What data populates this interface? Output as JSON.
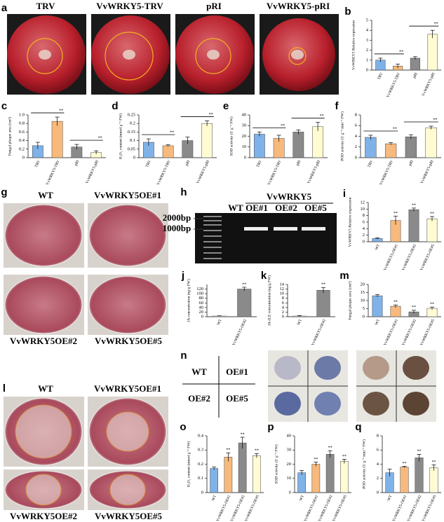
{
  "figure_panels": [
    {
      "panel": "a",
      "labels": [
        "TRV",
        "VvWRKY5-TRV",
        "pRI",
        "VvWRKY5-pRI"
      ]
    },
    {
      "panel": "g",
      "labels": [
        "WT",
        "VvWRKY5OE#1",
        "VvWRKY5OE#2",
        "VvWRKY5OE#5"
      ]
    },
    {
      "panel": "h",
      "labels": [
        "2000bp",
        "1000bp",
        "WT",
        "VvWRKY5",
        "OE#1",
        "OE#2",
        "OE#5"
      ]
    },
    {
      "panel": "l",
      "labels": [
        "WT",
        "VvWRKY5OE#1",
        "VvWRKY5OE#2",
        "VvWRKY5OE#5"
      ]
    },
    {
      "panel": "n",
      "labels": [
        "WT",
        "OE#1",
        "OE#2",
        "OE#5"
      ]
    }
  ],
  "chart_data": [
    {
      "type": "bar",
      "panel": "b",
      "ylabel": "VvWRKY5 Relative expression",
      "categories": [
        "TRV",
        "VvWRKY5-TRV",
        "pRI",
        "VvWRKY5-pRI"
      ],
      "values": [
        1.0,
        0.4,
        1.2,
        3.6
      ],
      "errors": [
        0.2,
        0.2,
        0.15,
        0.4
      ],
      "colors": [
        "#7fb2e8",
        "#f7b97c",
        "#8a8a8a",
        "#fffbd2"
      ],
      "significance": [
        null,
        "**",
        null,
        "**"
      ],
      "significance_style": "bracket",
      "ylim": [
        0,
        5
      ],
      "yticks": [
        0,
        1,
        2,
        3,
        4,
        5
      ]
    },
    {
      "type": "bar",
      "panel": "c",
      "ylabel": "Fungal plaque area (cm²)",
      "categories": [
        "TRV",
        "VvWRKY5-TRV",
        "pRI",
        "VvWRKY5-pRI"
      ],
      "values": [
        0.28,
        0.85,
        0.25,
        0.12
      ],
      "errors": [
        0.08,
        0.1,
        0.06,
        0.04
      ],
      "colors": [
        "#7fb2e8",
        "#f7b97c",
        "#8a8a8a",
        "#fffbd2"
      ],
      "significance": [
        null,
        "**",
        null,
        "**"
      ],
      "significance_style": "bracket",
      "ylim": [
        0,
        1
      ],
      "yticks": [
        0,
        0.2,
        0.4,
        0.6,
        0.8,
        {
          "value": 1,
          "label": "1.0"
        }
      ]
    },
    {
      "type": "bar",
      "panel": "d",
      "ylabel": "H₂O₂ content (mmol g⁻¹ FW)",
      "categories": [
        "TRV",
        "VvWRKY5-TRV",
        "pRI",
        "VvWRKY5-pRI"
      ],
      "values": [
        0.09,
        0.07,
        0.1,
        0.2
      ],
      "errors": [
        0.02,
        0.005,
        0.02,
        0.015
      ],
      "colors": [
        "#7fb2e8",
        "#f7b97c",
        "#8a8a8a",
        "#fffbd2"
      ],
      "significance": [
        null,
        "**",
        null,
        "**"
      ],
      "significance_style": "bracket",
      "ylim": [
        0,
        0.25
      ],
      "yticks": [
        0,
        0.05,
        0.1,
        0.15,
        0.2,
        0.25
      ]
    },
    {
      "type": "bar",
      "panel": "e",
      "ylabel": "SOD activity (U g⁻¹ FW)",
      "categories": [
        "TRV",
        "VvWRKY5-TRV",
        "pRI",
        "VvWRKY5-pRI"
      ],
      "values": [
        22,
        18,
        24,
        29
      ],
      "errors": [
        2,
        3,
        2,
        4
      ],
      "colors": [
        "#7fb2e8",
        "#f7b97c",
        "#8a8a8a",
        "#fffbd2"
      ],
      "significance": [
        null,
        "**",
        null,
        "**"
      ],
      "significance_style": "bracket",
      "ylim": [
        0,
        40
      ],
      "yticks": [
        0,
        10,
        20,
        30,
        40
      ]
    },
    {
      "type": "bar",
      "panel": "f",
      "ylabel": "POD activity (U g⁻¹ min⁻¹ FW)",
      "categories": [
        "TRV",
        "VvWRKY5-TRV",
        "pRI",
        "VvWRKY5-pRI"
      ],
      "values": [
        3.8,
        2.6,
        3.9,
        5.6
      ],
      "errors": [
        0.4,
        0.2,
        0.4,
        0.3
      ],
      "colors": [
        "#7fb2e8",
        "#f7b97c",
        "#8a8a8a",
        "#fffbd2"
      ],
      "significance": [
        null,
        "**",
        null,
        "**"
      ],
      "significance_style": "bracket",
      "ylim": [
        0,
        8
      ],
      "yticks": [
        0,
        2,
        4,
        6,
        8
      ]
    },
    {
      "type": "bar",
      "panel": "i",
      "ylabel": "VvWRKY5 Relative expression",
      "categories": [
        "WT",
        "VvWRKY5-OE#1",
        "VvWRKY5-OE#2",
        "VvWRKY5-OE#5"
      ],
      "values": [
        1,
        6.5,
        9.8,
        7.0
      ],
      "errors": [
        0.2,
        1.3,
        0.5,
        0.7
      ],
      "colors": [
        "#7fb2e8",
        "#f7b97c",
        "#8a8a8a",
        "#fffbd2"
      ],
      "significance": [
        null,
        "**",
        "**",
        "**"
      ],
      "significance_style": "bar",
      "ylim": [
        0,
        12
      ],
      "yticks": [
        0,
        2,
        4,
        6,
        8,
        10,
        12
      ]
    },
    {
      "type": "bar",
      "panel": "j",
      "ylabel": "JA concentration (ng/g FW)",
      "categories": [
        "WT",
        "VvWRKY5-OE#2"
      ],
      "values": [
        3,
        120
      ],
      "errors": [
        1,
        8
      ],
      "colors": [
        "#ffffff",
        "#8a8a8a"
      ],
      "significance": [
        null,
        "**"
      ],
      "significance_style": "bar",
      "ylim": [
        0,
        140
      ],
      "yticks": [
        0,
        20,
        40,
        60,
        80,
        100,
        120
      ]
    },
    {
      "type": "bar",
      "panel": "k",
      "ylabel": "JA-ILE concentration (ng/g FW)",
      "categories": [
        "WT",
        "VvWRKY5-OE#2"
      ],
      "values": [
        0.3,
        11.5
      ],
      "errors": [
        0.2,
        1.2
      ],
      "colors": [
        "#ffffff",
        "#8a8a8a"
      ],
      "significance": [
        null,
        "**"
      ],
      "significance_style": "bar",
      "ylim": [
        0,
        14
      ],
      "yticks": [
        0,
        2,
        4,
        6,
        8,
        10,
        12,
        14
      ]
    },
    {
      "type": "bar",
      "panel": "m",
      "ylabel": "Fungal plaque area (cm²)",
      "categories": [
        "WT",
        "VvWRKY5-OE#1",
        "VvWRKY5-OE#2",
        "VvWRKY5-OE#5"
      ],
      "values": [
        13,
        6.5,
        3,
        5.2
      ],
      "errors": [
        0.8,
        0.8,
        1,
        0.8
      ],
      "colors": [
        "#7fb2e8",
        "#f7b97c",
        "#8a8a8a",
        "#fffbd2"
      ],
      "significance": [
        null,
        "**",
        "**",
        "**"
      ],
      "significance_style": "bar",
      "ylim": [
        0,
        20
      ],
      "yticks": [
        0,
        5,
        10,
        15,
        20
      ]
    },
    {
      "type": "bar",
      "panel": "o",
      "ylabel": "H₂O₂ content (mmol g⁻¹ FW)",
      "categories": [
        "WT",
        "VvWRKY5-OE#1",
        "VvWRKY5-OE#2",
        "VvWRKY5-OE#5"
      ],
      "values": [
        0.17,
        0.25,
        0.35,
        0.26
      ],
      "errors": [
        0.01,
        0.03,
        0.04,
        0.015
      ],
      "colors": [
        "#7fb2e8",
        "#f7b97c",
        "#8a8a8a",
        "#fffbd2"
      ],
      "significance": [
        null,
        "**",
        "**",
        "**"
      ],
      "significance_style": "bar",
      "ylim": [
        0,
        0.4
      ],
      "yticks": [
        0,
        0.1,
        0.2,
        0.3,
        0.4
      ]
    },
    {
      "type": "bar",
      "panel": "p",
      "ylabel": "SOD activity (U g⁻¹ FW)",
      "categories": [
        "WT",
        "VvWRKY5-OE#1",
        "VvWRKY5-OE#2",
        "VvWRKY5-OE#5"
      ],
      "values": [
        14,
        20,
        27,
        22
      ],
      "errors": [
        1.5,
        1.5,
        2.5,
        1.5
      ],
      "colors": [
        "#7fb2e8",
        "#f7b97c",
        "#8a8a8a",
        "#fffbd2"
      ],
      "significance": [
        null,
        "**",
        "**",
        "**"
      ],
      "significance_style": "bar",
      "ylim": [
        0,
        40
      ],
      "yticks": [
        0,
        10,
        20,
        30,
        40
      ]
    },
    {
      "type": "bar",
      "panel": "q",
      "ylabel": "POD activity (U g⁻¹ min⁻¹ FW)",
      "categories": [
        "WT",
        "VvWRKY5-OE#1",
        "VvWRKY5-OE#2",
        "VvWRKY5-OE#5"
      ],
      "values": [
        2.8,
        3.6,
        4.9,
        3.5
      ],
      "errors": [
        0.5,
        0.1,
        0.5,
        0.4
      ],
      "colors": [
        "#7fb2e8",
        "#f7b97c",
        "#8a8a8a",
        "#fffbd2"
      ],
      "significance": [
        null,
        "**",
        "**",
        "**"
      ],
      "significance_style": "bar",
      "ylim": [
        0,
        8
      ],
      "yticks": [
        0,
        2,
        4,
        6,
        8
      ]
    }
  ]
}
